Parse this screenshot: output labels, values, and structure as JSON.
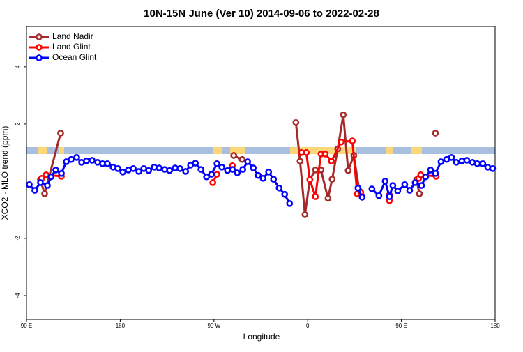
{
  "chart_data": {
    "type": "line",
    "title": "10N-15N June (Ver 10)   2014-09-06 to 2022-02-28",
    "x_label": "Longitude",
    "y_label": "XCO2 - MLO trend (ppm)",
    "xlim": [
      90,
      540
    ],
    "xticks": [
      {
        "value": 90,
        "label": "90 E"
      },
      {
        "value": 180,
        "label": "180"
      },
      {
        "value": 270,
        "label": "90 W"
      },
      {
        "value": 360,
        "label": "0"
      },
      {
        "value": 450,
        "label": "90 E"
      },
      {
        "value": 540,
        "label": "180"
      }
    ],
    "ylim": [
      -4.83,
      5.41
    ],
    "yticks": [
      -4,
      -2,
      2,
      4
    ],
    "legend": "top-left",
    "series": [
      {
        "name": "Land Nadir",
        "color": "#a52a2a",
        "x": [
          103.4,
          107.4,
          122.8,
          null,
          289.0,
          297.1,
          null,
          348.7,
          352.7,
          357.4,
          362.1,
          367.4,
          372.8,
          379.5,
          383.5,
          388.9,
          394.2,
          398.9,
          404.3,
          409.6,
          null,
          438.5,
          null,
          464.6,
          467.3,
          null,
          482.7
        ],
        "values": [
          0.05,
          -0.44,
          1.68,
          null,
          0.9,
          0.76,
          null,
          2.05,
          0.7,
          -1.17,
          0.05,
          0.39,
          0.39,
          -0.6,
          0.07,
          1.13,
          2.32,
          0.37,
          0.9,
          -0.34,
          null,
          -0.48,
          null,
          0.05,
          -0.44,
          null,
          1.68
        ]
      },
      {
        "name": "Land Glint",
        "color": "#ff0000",
        "x": [
          104.7,
          108.8,
          123.5,
          null,
          268.9,
          272.9,
          null,
          287.7,
          null,
          354.0,
          358.7,
          362.1,
          367.4,
          372.8,
          376.8,
          382.8,
          392.2,
          402.9,
          407.6,
          411.0,
          null,
          438.5,
          null,
          466.6,
          468.6,
          483.4
        ],
        "values": [
          0.1,
          0.22,
          0.17,
          null,
          -0.05,
          0.24,
          null,
          0.54,
          null,
          1.0,
          1.0,
          0.05,
          -0.54,
          0.95,
          0.95,
          0.7,
          1.37,
          1.41,
          -0.44,
          -0.39,
          null,
          -0.68,
          null,
          0.1,
          0.22,
          0.17
        ]
      },
      {
        "name": "Ocean Glint",
        "color": "#0000ff",
        "x": [
          92.7,
          98.0,
          103.4,
          110.1,
          113.5,
          118.1,
          123.5,
          128.2,
          132.9,
          138.2,
          142.9,
          147.6,
          153.0,
          158.3,
          163.0,
          167.7,
          173.1,
          177.8,
          182.5,
          187.8,
          192.5,
          197.9,
          202.6,
          207.3,
          212.6,
          217.3,
          222.7,
          227.4,
          232.7,
          237.4,
          242.8,
          247.5,
          252.2,
          257.5,
          262.9,
          267.6,
          272.9,
          277.6,
          283.0,
          287.7,
          292.4,
          297.7,
          302.4,
          307.8,
          312.5,
          317.2,
          322.5,
          327.2,
          332.6,
          337.9,
          342.6,
          null,
          408.3,
          412.3,
          null,
          421.7,
          428.4,
          434.4,
          438.5,
          441.8,
          446.5,
          453.2,
          457.9,
          463.2,
          469.3,
          473.3,
          478.0,
          482.7,
          488.0,
          493.4,
          498.1,
          502.8,
          508.1,
          512.8,
          518.2,
          522.9,
          528.2,
          532.9,
          537.6
        ],
        "values": [
          -0.12,
          -0.32,
          -0.05,
          -0.15,
          0.15,
          0.39,
          0.27,
          0.68,
          0.76,
          0.83,
          0.66,
          0.71,
          0.73,
          0.66,
          0.61,
          0.61,
          0.49,
          0.44,
          0.32,
          0.39,
          0.44,
          0.34,
          0.44,
          0.37,
          0.49,
          0.46,
          0.41,
          0.37,
          0.46,
          0.44,
          0.34,
          0.56,
          0.63,
          0.41,
          0.15,
          0.24,
          0.61,
          0.49,
          0.37,
          0.41,
          0.29,
          0.41,
          0.68,
          0.46,
          0.2,
          0.1,
          0.32,
          0.07,
          -0.24,
          -0.46,
          -0.78,
          null,
          -0.24,
          -0.56,
          null,
          -0.27,
          -0.51,
          0,
          -0.54,
          -0.15,
          -0.34,
          -0.12,
          -0.32,
          -0.05,
          -0.15,
          0.15,
          0.39,
          0.27,
          0.68,
          0.76,
          0.83,
          0.66,
          0.71,
          0.73,
          0.66,
          0.61,
          0.61,
          0.49,
          0.44
        ]
      }
    ]
  }
}
